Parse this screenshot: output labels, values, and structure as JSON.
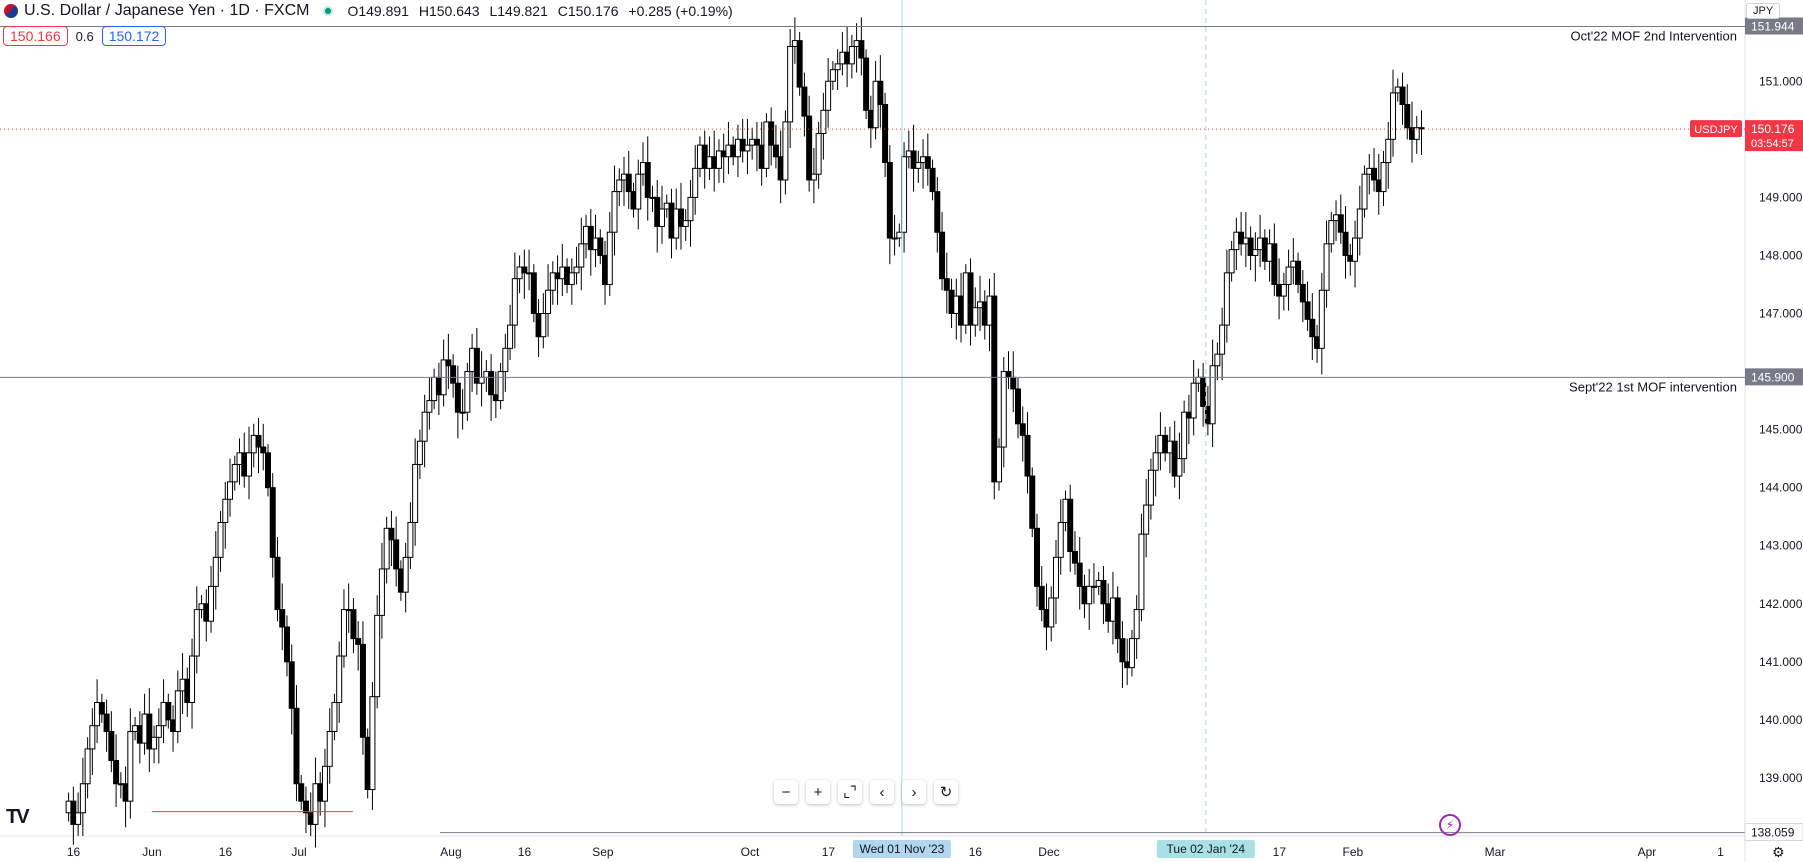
{
  "header": {
    "symbol": "U.S. Dollar / Japanese Yen · 1D · FXCM",
    "open_label": "O",
    "open": "149.891",
    "high_label": "H",
    "high": "150.643",
    "low_label": "L",
    "low": "149.821",
    "close_label": "C",
    "close": "150.176",
    "change": "+0.285 (+0.19%)",
    "sell_price": "150.166",
    "spread": "0.6",
    "buy_price": "150.172",
    "currency": "JPY"
  },
  "toolbar": {
    "zoom_out": "−",
    "zoom_in": "+",
    "reset_scale": "⌞⌝",
    "scroll_left": "‹",
    "scroll_right": "›",
    "reset": "↻"
  },
  "logo": "TV",
  "colors": {
    "up_fill": "#ffffff",
    "down_fill": "#000000",
    "candle_border": "#000000",
    "last_price": "#f23645",
    "level_line": "#787b86",
    "crosshair": "#a9d4e8",
    "grid": "#f0f3fa",
    "axis_text": "#131722"
  },
  "chart_data": {
    "type": "candlestick",
    "symbol": "USDJPY",
    "timeframe": "1D",
    "ylim": [
      138.0,
      152.4
    ],
    "y_ticks": [
      "139.000",
      "140.000",
      "141.000",
      "142.000",
      "143.000",
      "144.000",
      "145.000",
      "147.000",
      "148.000",
      "149.000",
      "151.000"
    ],
    "x_ticks": [
      {
        "date": "2023-05-16",
        "label": "16"
      },
      {
        "date": "2023-06-01",
        "label": "Jun"
      },
      {
        "date": "2023-06-16",
        "label": "16"
      },
      {
        "date": "2023-07-01",
        "label": "Jul"
      },
      {
        "date": "2023-08-01",
        "label": "Aug"
      },
      {
        "date": "2023-08-16",
        "label": "16"
      },
      {
        "date": "2023-09-01",
        "label": "Sep"
      },
      {
        "date": "2023-10-01",
        "label": "Oct"
      },
      {
        "date": "2023-10-17",
        "label": "17"
      },
      {
        "date": "2023-11-16",
        "label": "16"
      },
      {
        "date": "2023-12-01",
        "label": "Dec"
      },
      {
        "date": "2024-01-17",
        "label": "17"
      },
      {
        "date": "2024-02-01",
        "label": "Feb"
      },
      {
        "date": "2024-03-01",
        "label": "Mar"
      },
      {
        "date": "2024-04-01",
        "label": "Apr"
      },
      {
        "date": "2024-04-16",
        "label": "1"
      }
    ],
    "x_range": [
      "2023-05-01",
      "2024-04-21"
    ],
    "crosshair_v": [
      {
        "date": "2023-11-01",
        "label": "Wed 01 Nov '23"
      },
      {
        "date": "2024-01-02",
        "label": "Tue 02 Jan '24"
      }
    ],
    "horizontal_levels": [
      {
        "price": 151.944,
        "label": "151.944",
        "text": "Oct'22 MOF 2nd Intervention"
      },
      {
        "price": 145.9,
        "label": "145.900",
        "text": "Sept'22 1st MOF intervention"
      }
    ],
    "low_marker": {
      "price": 138.059,
      "label": "138.059"
    },
    "red_segment": {
      "start": "2023-06-01",
      "end": "2023-07-12",
      "price": 138.42
    },
    "last_price": {
      "price": 150.176,
      "symbol": "USDJPY",
      "label": "150.176",
      "countdown": "03:54:57"
    },
    "ohlc_close": [
      138.6,
      138.2,
      138.4,
      138.9,
      139.5,
      139.9,
      140.3,
      140.1,
      139.8,
      139.3,
      138.9,
      138.9,
      138.6,
      139.8,
      139.9,
      139.6,
      140.1,
      139.5,
      139.7,
      139.9,
      140.3,
      140.0,
      139.8,
      140.5,
      140.7,
      140.3,
      141.1,
      141.9,
      142.0,
      141.7,
      142.3,
      142.8,
      143.4,
      143.8,
      144.1,
      144.4,
      144.6,
      144.2,
      144.6,
      144.9,
      144.7,
      144.6,
      144.0,
      142.8,
      141.9,
      141.6,
      141.0,
      140.2,
      138.9,
      138.6,
      138.4,
      138.2,
      138.9,
      138.6,
      139.2,
      139.8,
      140.3,
      141.1,
      141.9,
      141.9,
      141.4,
      141.3,
      139.7,
      138.8,
      140.4,
      141.8,
      142.6,
      143.3,
      143.1,
      142.6,
      142.2,
      142.8,
      143.4,
      144.4,
      144.8,
      145.3,
      145.5,
      145.9,
      145.6,
      146.2,
      146.1,
      145.8,
      145.3,
      145.3,
      146.0,
      146.4,
      145.8,
      145.9,
      146.0,
      145.6,
      145.5,
      146.0,
      146.4,
      146.8,
      147.6,
      147.8,
      147.7,
      147.7,
      147.0,
      146.6,
      147.0,
      147.4,
      147.7,
      147.6,
      147.8,
      147.5,
      147.7,
      147.8,
      148.2,
      148.5,
      148.1,
      148.3,
      148.0,
      147.5,
      148.4,
      149.1,
      149.3,
      149.4,
      149.1,
      148.8,
      149.4,
      149.6,
      149.0,
      149.0,
      148.5,
      148.8,
      148.9,
      148.3,
      148.8,
      148.5,
      148.6,
      149.0,
      149.5,
      149.9,
      149.5,
      149.7,
      149.5,
      149.8,
      149.7,
      149.9,
      149.7,
      150.0,
      149.8,
      149.9,
      150.0,
      149.9,
      149.5,
      150.3,
      149.9,
      149.7,
      149.3,
      150.3,
      151.6,
      151.7,
      150.9,
      150.4,
      149.3,
      149.4,
      150.1,
      150.5,
      151.0,
      151.2,
      151.3,
      151.5,
      151.3,
      151.6,
      151.7,
      151.4,
      150.5,
      150.2,
      151.0,
      150.6,
      149.6,
      148.3,
      148.3,
      148.4,
      149.7,
      149.8,
      149.5,
      149.6,
      149.7,
      149.5,
      149.1,
      148.4,
      147.6,
      147.4,
      147.0,
      147.3,
      146.8,
      147.7,
      146.8,
      147.1,
      147.2,
      146.8,
      147.3,
      144.1,
      144.7,
      146.0,
      145.9,
      145.7,
      145.1,
      144.9,
      144.2,
      143.3,
      142.3,
      141.9,
      141.6,
      142.1,
      142.8,
      143.4,
      143.8,
      142.9,
      142.7,
      142.3,
      142.0,
      142.3,
      142.3,
      142.4,
      142.0,
      141.7,
      142.1,
      141.4,
      141.0,
      140.9,
      141.4,
      141.9,
      143.2,
      143.7,
      144.3,
      144.6,
      144.9,
      144.6,
      144.8,
      144.2,
      144.5,
      145.3,
      145.2,
      145.8,
      145.9,
      145.4,
      145.1,
      146.1,
      146.3,
      146.8,
      147.7,
      148.1,
      148.4,
      148.2,
      148.3,
      148.0,
      148.1,
      148.3,
      147.9,
      148.2,
      147.5,
      147.3,
      147.5,
      147.8,
      147.9,
      147.5,
      147.2,
      146.9,
      146.6,
      146.4,
      147.4,
      148.2,
      148.6,
      148.7,
      148.4,
      148.0,
      147.9,
      148.3,
      148.8,
      149.4,
      149.5,
      149.3,
      149.1,
      149.6,
      150.0,
      150.8,
      150.9,
      150.6,
      150.2,
      150.0,
      150.2,
      150.18
    ]
  }
}
